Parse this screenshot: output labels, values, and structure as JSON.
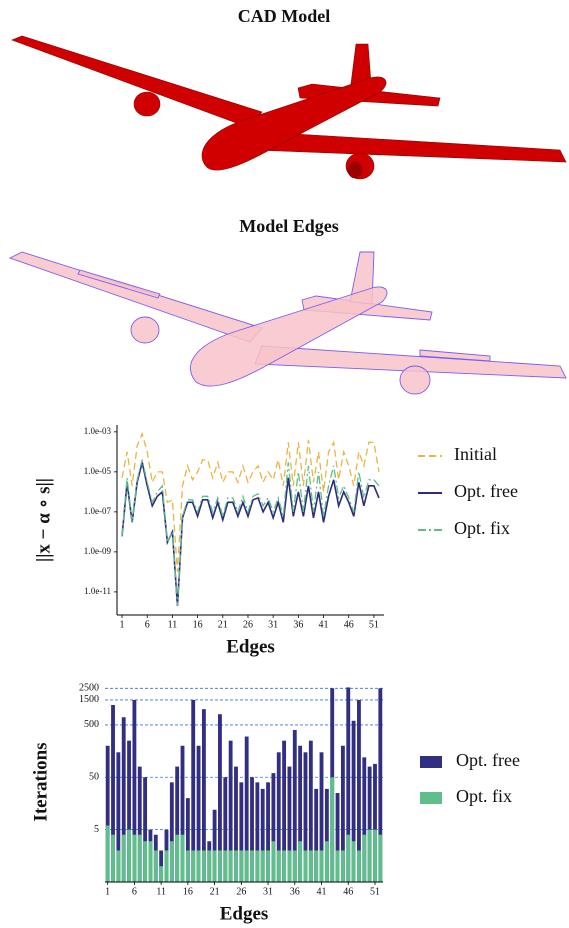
{
  "figure": {
    "cad_title": "CAD Model",
    "edges_title": "Model Edges"
  },
  "chart_data": [
    {
      "type": "line",
      "yscale": "log",
      "xlabel": "Edges",
      "ylabel": "||x − α ∘ s||",
      "legend": "right",
      "x": [
        1,
        2,
        3,
        4,
        5,
        6,
        7,
        8,
        9,
        10,
        11,
        12,
        13,
        14,
        15,
        16,
        17,
        18,
        19,
        20,
        21,
        22,
        23,
        24,
        25,
        26,
        27,
        28,
        29,
        30,
        31,
        32,
        33,
        34,
        35,
        36,
        37,
        38,
        39,
        40,
        41,
        42,
        43,
        44,
        45,
        46,
        47,
        48,
        49,
        50,
        51,
        52
      ],
      "xlim": [
        0,
        53
      ],
      "xticks": [
        1,
        6,
        11,
        16,
        21,
        26,
        31,
        36,
        41,
        46,
        51
      ],
      "ylim": [
        7e-13,
        0.0022
      ],
      "yticks": [
        {
          "value": 1e-11,
          "label": "1.0e-11"
        },
        {
          "value": 1e-09,
          "label": "1.0e-09"
        },
        {
          "value": 1e-07,
          "label": "1.0e-07"
        },
        {
          "value": 1e-05,
          "label": "1.0e-05"
        },
        {
          "value": 0.001,
          "label": "1.0e-03"
        }
      ],
      "series": [
        {
          "name": "Initial",
          "color": "#e9b446",
          "linestyle": "dashed",
          "values": [
            5e-06,
            0.0001,
            2e-06,
            0.0002,
            0.0008,
            0.0001,
            3e-06,
            1e-05,
            1e-05,
            3e-07,
            4e-07,
            1e-10,
            2e-06,
            2e-05,
            4e-06,
            1e-05,
            4e-05,
            4e-05,
            5e-06,
            3e-05,
            3e-06,
            1e-05,
            1e-05,
            3e-06,
            2e-05,
            3e-06,
            1e-05,
            2e-05,
            3e-06,
            1e-05,
            4e-06,
            4e-05,
            2e-06,
            0.0003,
            2e-06,
            0.0003,
            2e-06,
            0.0004,
            3e-06,
            0.0001,
            1e-06,
            0.0001,
            0.0003,
            4e-06,
            0.0001,
            2e-05,
            2e-06,
            0.0001,
            2e-05,
            0.0003,
            0.0003,
            1e-05
          ]
        },
        {
          "name": "Opt. free",
          "color": "#2e2a7e",
          "linestyle": "solid",
          "values": [
            6e-09,
            3e-06,
            3e-08,
            3e-06,
            3e-05,
            2e-06,
            2e-07,
            6e-07,
            1e-06,
            3e-09,
            1e-08,
            2e-12,
            5e-08,
            3e-07,
            3e-07,
            6e-08,
            4e-07,
            4e-07,
            5e-08,
            3e-07,
            4e-08,
            3e-07,
            3e-07,
            6e-08,
            3e-07,
            6e-08,
            4e-07,
            5e-07,
            1e-07,
            3e-07,
            5e-08,
            3e-07,
            3e-08,
            5e-06,
            6e-08,
            1e-06,
            6e-08,
            2e-06,
            5e-08,
            1e-06,
            3e-08,
            6e-07,
            4e-06,
            2e-07,
            1e-06,
            3e-07,
            6e-08,
            3e-06,
            2e-07,
            2e-06,
            2e-06,
            5e-07
          ]
        },
        {
          "name": "Opt. fix",
          "color": "#5cbf8a",
          "linestyle": "dashdot",
          "values": [
            6e-09,
            5e-06,
            3e-08,
            4e-06,
            4e-05,
            3e-06,
            3e-07,
            1e-06,
            2e-06,
            3e-09,
            1e-08,
            2e-12,
            6e-08,
            4e-07,
            4e-07,
            1e-07,
            6e-07,
            6e-07,
            1e-07,
            5e-07,
            6e-08,
            5e-07,
            5e-07,
            1e-07,
            6e-07,
            1e-07,
            6e-07,
            8e-07,
            2e-07,
            5e-07,
            1e-07,
            5e-07,
            6e-08,
            3e-05,
            1e-07,
            1e-05,
            1e-07,
            2e-05,
            1e-07,
            1e-05,
            6e-08,
            2e-06,
            2e-05,
            5e-07,
            2e-06,
            5e-07,
            1e-07,
            1e-05,
            5e-07,
            4e-06,
            4e-06,
            2e-06
          ]
        }
      ]
    },
    {
      "type": "bar",
      "barmode": "overlay",
      "yscale": "log",
      "grid": true,
      "xlabel": "Edges",
      "ylabel": "Iterations",
      "legend": "right",
      "x": [
        1,
        2,
        3,
        4,
        5,
        6,
        7,
        8,
        9,
        10,
        11,
        12,
        13,
        14,
        15,
        16,
        17,
        18,
        19,
        20,
        21,
        22,
        23,
        24,
        25,
        26,
        27,
        28,
        29,
        30,
        31,
        32,
        33,
        34,
        35,
        36,
        37,
        38,
        39,
        40,
        41,
        42,
        43,
        44,
        45,
        46,
        47,
        48,
        49,
        50,
        51,
        52
      ],
      "xlim": [
        0.5,
        52.5
      ],
      "xticks": [
        1,
        6,
        11,
        16,
        21,
        26,
        31,
        36,
        41,
        46,
        51
      ],
      "ylim": [
        0.5,
        3300
      ],
      "yticks": [
        5,
        50,
        500,
        1500,
        2500
      ],
      "series": [
        {
          "name": "Opt. free",
          "color": "#322f82",
          "values": [
            200,
            1200,
            150,
            700,
            250,
            1500,
            80,
            50,
            5,
            4,
            2,
            5,
            40,
            80,
            200,
            20,
            1500,
            200,
            1000,
            3,
            12,
            800,
            50,
            250,
            80,
            40,
            300,
            50,
            40,
            30,
            40,
            60,
            150,
            250,
            80,
            400,
            200,
            150,
            250,
            30,
            150,
            30,
            2500,
            25,
            200,
            2600,
            600,
            1500,
            120,
            80,
            90,
            2500
          ]
        },
        {
          "name": "Opt. fix",
          "color": "#5fbf8c",
          "values": [
            6,
            4,
            2,
            4,
            5,
            4,
            4,
            3,
            3,
            2,
            1,
            2,
            3,
            4,
            4,
            2,
            2,
            2,
            2,
            2,
            2,
            2,
            2,
            2,
            2,
            2,
            2,
            2,
            2,
            2,
            2,
            3,
            2,
            2,
            2,
            2,
            3,
            2,
            2,
            2,
            2,
            3,
            50,
            2,
            2,
            4,
            3,
            2,
            4,
            5,
            5,
            4
          ]
        }
      ]
    }
  ]
}
